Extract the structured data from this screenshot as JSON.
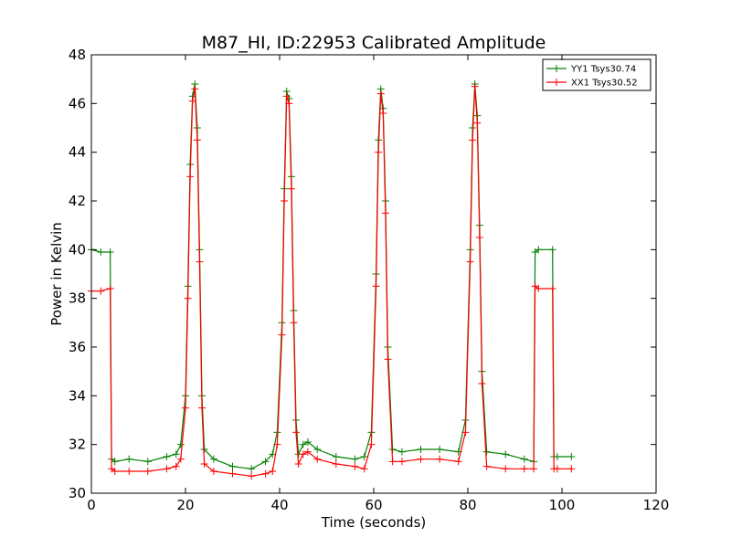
{
  "chart_data": {
    "type": "line",
    "title": "M87_HI, ID:22953 Calibrated Amplitude",
    "xlabel": "Time (seconds)",
    "ylabel": "Power in Kelvin",
    "xlim": [
      0,
      120
    ],
    "ylim": [
      30,
      48
    ],
    "xticks": [
      0,
      20,
      40,
      60,
      80,
      100,
      120
    ],
    "yticks": [
      30,
      32,
      34,
      36,
      38,
      40,
      42,
      44,
      46,
      48
    ],
    "grid": false,
    "legend_position": "top-right",
    "series": [
      {
        "name": "YY1 Tsys30.74",
        "color": "#008000",
        "marker": "+",
        "x": [
          0,
          2,
          4,
          4.3,
          5,
          8,
          12,
          16,
          18,
          19,
          20,
          20.5,
          21,
          21.5,
          22,
          22.5,
          23,
          23.5,
          24,
          26,
          30,
          34,
          37,
          38.5,
          39.5,
          40.5,
          41,
          41.5,
          42,
          42.5,
          43,
          43.5,
          44,
          45,
          46,
          48,
          52,
          56,
          58,
          59.5,
          60.5,
          61,
          61.5,
          62,
          62.5,
          63,
          64,
          66,
          70,
          74,
          78,
          79.5,
          80.5,
          81,
          81.5,
          82,
          82.5,
          83,
          84,
          88,
          92,
          94,
          94.3,
          95,
          98,
          98.3,
          99,
          102
        ],
        "y": [
          40.0,
          39.9,
          39.9,
          31.4,
          31.3,
          31.4,
          31.3,
          31.5,
          31.6,
          32.0,
          34.0,
          38.5,
          43.5,
          46.3,
          46.8,
          45.0,
          40.0,
          34.0,
          31.8,
          31.4,
          31.1,
          31.0,
          31.3,
          31.6,
          32.5,
          37.0,
          42.5,
          46.5,
          46.2,
          43.0,
          37.5,
          33.0,
          31.6,
          32.0,
          32.1,
          31.8,
          31.5,
          31.4,
          31.5,
          32.5,
          39.0,
          44.5,
          46.6,
          45.8,
          42.0,
          36.0,
          31.8,
          31.7,
          31.8,
          31.8,
          31.7,
          33.0,
          40.0,
          45.0,
          46.8,
          45.5,
          41.0,
          35.0,
          31.7,
          31.6,
          31.4,
          31.3,
          39.9,
          40.0,
          40.0,
          31.5,
          31.5,
          31.5
        ]
      },
      {
        "name": "XX1 Tsys30.52",
        "color": "#ff0000",
        "marker": "+",
        "x": [
          0,
          2,
          4,
          4.3,
          5,
          8,
          12,
          16,
          18,
          19,
          20,
          20.5,
          21,
          21.5,
          22,
          22.5,
          23,
          23.5,
          24,
          26,
          30,
          34,
          37,
          38.5,
          39.5,
          40.5,
          41,
          41.5,
          42,
          42.5,
          43,
          43.5,
          44,
          45,
          46,
          48,
          52,
          56,
          58,
          59.5,
          60.5,
          61,
          61.5,
          62,
          62.5,
          63,
          64,
          66,
          70,
          74,
          78,
          79.5,
          80.5,
          81,
          81.5,
          82,
          82.5,
          83,
          84,
          88,
          92,
          94,
          94.3,
          95,
          98,
          98.3,
          99,
          102
        ],
        "y": [
          38.3,
          38.3,
          38.4,
          31.0,
          30.9,
          30.9,
          30.9,
          31.0,
          31.1,
          31.4,
          33.5,
          38.0,
          43.0,
          46.1,
          46.6,
          44.5,
          39.5,
          33.5,
          31.2,
          30.9,
          30.8,
          30.7,
          30.8,
          30.9,
          32.0,
          36.5,
          42.0,
          46.3,
          46.0,
          42.5,
          37.0,
          32.5,
          31.2,
          31.6,
          31.7,
          31.4,
          31.2,
          31.1,
          31.0,
          32.0,
          38.5,
          44.0,
          46.4,
          45.6,
          41.5,
          35.5,
          31.3,
          31.3,
          31.4,
          31.4,
          31.3,
          32.5,
          39.5,
          44.5,
          46.7,
          45.2,
          40.5,
          34.5,
          31.1,
          31.0,
          31.0,
          31.0,
          38.5,
          38.4,
          38.4,
          31.0,
          31.0,
          31.0
        ]
      }
    ]
  }
}
